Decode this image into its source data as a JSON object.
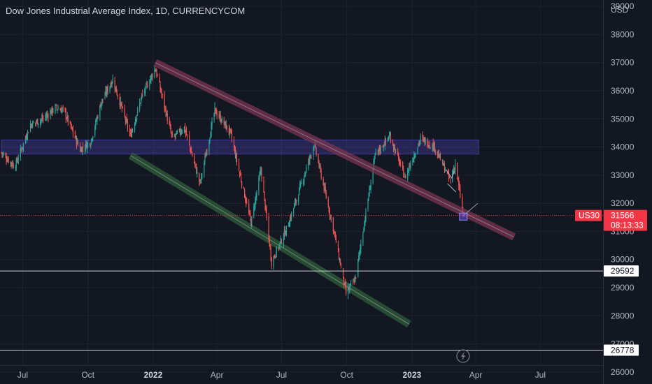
{
  "header": {
    "title": "Dow Jones Industrial Average Index, 1D, CURRENCYCOM"
  },
  "price_axis": {
    "currency": "USD"
  },
  "time_axis": {
    "labels": [
      {
        "text": "Jul",
        "bold": false
      },
      {
        "text": "Oct",
        "bold": false
      },
      {
        "text": "2022",
        "bold": true
      },
      {
        "text": "Apr",
        "bold": false
      },
      {
        "text": "Jul",
        "bold": false
      },
      {
        "text": "Oct",
        "bold": false
      },
      {
        "text": "2023",
        "bold": true
      },
      {
        "text": "Apr",
        "bold": false
      },
      {
        "text": "Jul",
        "bold": false
      }
    ]
  },
  "symbol_tag": "US30",
  "last_price": {
    "value": "31566",
    "countdown": "08:13:33"
  },
  "horizontal_lines": [
    "29592",
    "26778"
  ],
  "colors": {
    "background": "#131722",
    "grid": "#1e222d",
    "up": "#26a69a",
    "down": "#ef5350",
    "last_price": "#f23645",
    "zone": "#5b4dd6",
    "down_channel": "#7a3550",
    "lower_channel": "#2f5d3a"
  },
  "chart_data": {
    "type": "candlestick",
    "title": "Dow Jones Industrial Average Index, 1D, CURRENCYCOM",
    "ylabel": "USD",
    "ylim": [
      25500,
      39500
    ],
    "yticks": [
      26000,
      27000,
      28000,
      29000,
      30000,
      31000,
      32000,
      33000,
      34000,
      35000,
      36000,
      37000,
      38000,
      39000
    ],
    "x_range": [
      "2021-06-01",
      "2023-08-20"
    ],
    "close_path": [
      {
        "date": "2021-06-01",
        "value": 33800
      },
      {
        "date": "2021-06-20",
        "value": 33300
      },
      {
        "date": "2021-07-12",
        "value": 34800
      },
      {
        "date": "2021-07-30",
        "value": 35000
      },
      {
        "date": "2021-08-16",
        "value": 35400
      },
      {
        "date": "2021-08-28",
        "value": 35300
      },
      {
        "date": "2021-09-20",
        "value": 33900
      },
      {
        "date": "2021-10-05",
        "value": 34200
      },
      {
        "date": "2021-10-20",
        "value": 35600
      },
      {
        "date": "2021-11-05",
        "value": 36400
      },
      {
        "date": "2021-11-30",
        "value": 34400
      },
      {
        "date": "2021-12-16",
        "value": 35800
      },
      {
        "date": "2022-01-04",
        "value": 36800
      },
      {
        "date": "2022-01-28",
        "value": 34300
      },
      {
        "date": "2022-02-14",
        "value": 34700
      },
      {
        "date": "2022-03-08",
        "value": 32700
      },
      {
        "date": "2022-03-29",
        "value": 35300
      },
      {
        "date": "2022-04-20",
        "value": 34500
      },
      {
        "date": "2022-05-19",
        "value": 31300
      },
      {
        "date": "2022-06-02",
        "value": 33200
      },
      {
        "date": "2022-06-17",
        "value": 29900
      },
      {
        "date": "2022-07-10",
        "value": 31200
      },
      {
        "date": "2022-08-16",
        "value": 34100
      },
      {
        "date": "2022-09-13",
        "value": 31000
      },
      {
        "date": "2022-09-30",
        "value": 28800
      },
      {
        "date": "2022-10-13",
        "value": 29300
      },
      {
        "date": "2022-11-10",
        "value": 33700
      },
      {
        "date": "2022-12-01",
        "value": 34400
      },
      {
        "date": "2022-12-22",
        "value": 32900
      },
      {
        "date": "2023-01-13",
        "value": 34300
      },
      {
        "date": "2023-02-02",
        "value": 34000
      },
      {
        "date": "2023-02-24",
        "value": 32800
      },
      {
        "date": "2023-03-03",
        "value": 33400
      },
      {
        "date": "2023-03-14",
        "value": 31600
      }
    ],
    "last_price": 31566,
    "horizontal_levels": [
      29592,
      26778
    ],
    "annotations": [
      {
        "kind": "descending-channel",
        "from": {
          "date": "2022-01-04",
          "value": 37000
        },
        "to": {
          "date": "2023-05-25",
          "value": 30800
        }
      },
      {
        "kind": "support-channel",
        "from": {
          "date": "2021-11-30",
          "value": 33700
        },
        "to": {
          "date": "2022-12-28",
          "value": 27700
        }
      },
      {
        "kind": "resistance-zone",
        "from_date": "2021-06-01",
        "to_date": "2023-04-05",
        "low": 33750,
        "high": 34250
      },
      {
        "kind": "marker-zone",
        "from_date": "2023-03-09",
        "to_date": "2023-03-20",
        "low": 31400,
        "high": 31650
      }
    ],
    "grid": true
  }
}
